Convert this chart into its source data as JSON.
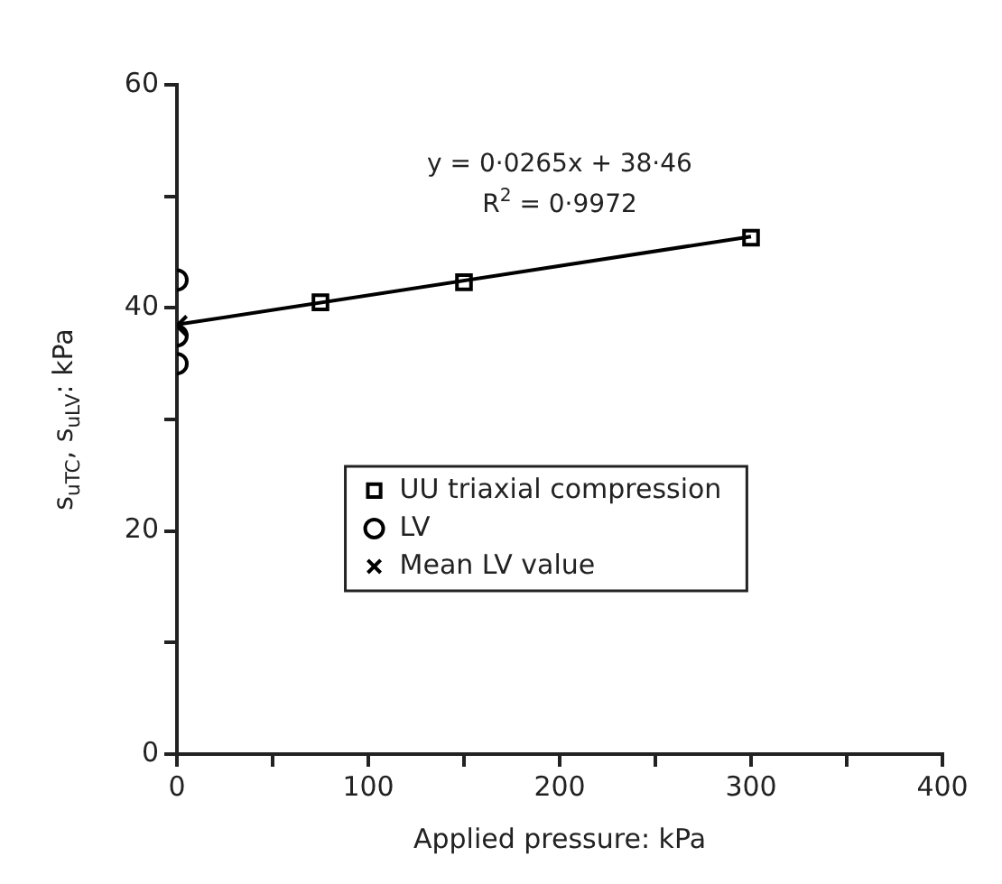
{
  "chart_data": {
    "type": "scatter",
    "xlabel": "Applied pressure: kPa",
    "ylabel": "s$_{uTC}$, s$_{uLV}$: kPa",
    "annotations": [
      "y = 0·0265x + 38·46",
      "R$^{2}$ = 0·9972"
    ],
    "series": [
      {
        "type": "line",
        "color": "#000000",
        "x": [
          0,
          300
        ],
        "values": [
          38.5,
          46.4
        ],
        "marker": "none",
        "line_style": "solid"
      },
      {
        "name": "UU triaxial compression",
        "color": "#000000",
        "marker": "square",
        "x": [
          75,
          150,
          300
        ],
        "values": [
          40.5,
          42.3,
          46.3
        ]
      },
      {
        "name": "LV",
        "color": "#000000",
        "marker": "circle",
        "x": [
          0,
          0,
          0
        ],
        "values": [
          42.5,
          37.5,
          35
        ]
      },
      {
        "name": "Mean LV value",
        "color": "#000000",
        "marker": "cross",
        "x": [
          0
        ],
        "values": [
          38.4
        ]
      }
    ],
    "xlim": [
      0,
      400
    ],
    "xticks": [
      0,
      {
        "value": 50,
        "label": null
      },
      100,
      {
        "value": 150,
        "label": null
      },
      200,
      {
        "value": 250,
        "label": null
      },
      300,
      {
        "value": 350,
        "label": null
      },
      400
    ],
    "ylim": [
      0,
      60
    ],
    "yticks": [
      0,
      {
        "value": 10,
        "label": null
      },
      20,
      {
        "value": 30,
        "label": null
      },
      40,
      {
        "value": 50,
        "label": null
      },
      60
    ],
    "legend": "right",
    "grid": false
  }
}
